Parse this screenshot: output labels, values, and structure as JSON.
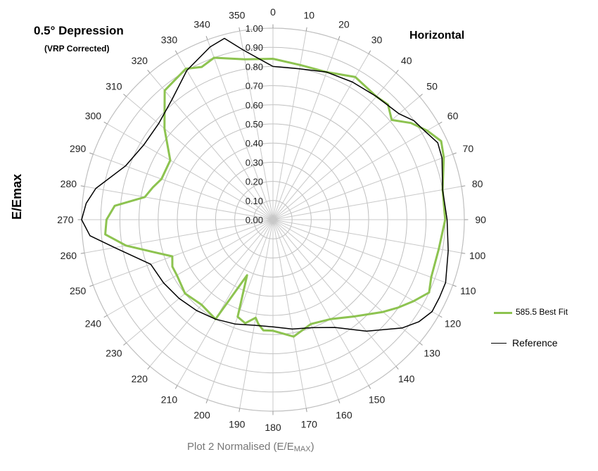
{
  "title": "0.5° Depression",
  "subtitle": "(VRP Corrected)",
  "plane_label": "Horizontal",
  "ylabel": "E/Emax",
  "caption_prefix": "Plot 2 Normalised (E/E",
  "caption_sub": "MAX",
  "caption_suffix": ")",
  "legend": [
    {
      "label": "585.5 Best Fit",
      "color": "#8dc350"
    },
    {
      "label": "Reference",
      "color": "#000000"
    }
  ],
  "chart_data": {
    "type": "polar-line",
    "angle_unit": "degrees",
    "angle_ticks": [
      0,
      10,
      20,
      30,
      40,
      50,
      60,
      70,
      80,
      90,
      100,
      110,
      120,
      130,
      140,
      150,
      160,
      170,
      180,
      190,
      200,
      210,
      220,
      230,
      240,
      250,
      260,
      270,
      280,
      290,
      300,
      310,
      320,
      330,
      340,
      350
    ],
    "radial_ticks": [
      "0.00",
      "0.10",
      "0.20",
      "0.30",
      "0.40",
      "0.50",
      "0.60",
      "0.70",
      "0.80",
      "0.90",
      "1.00"
    ],
    "rlim": [
      0,
      1
    ],
    "grid": true,
    "legend_position": "right",
    "series": [
      {
        "name": "585.5 Best Fit",
        "color": "#8dc350",
        "angles": [
          0,
          10,
          20,
          30,
          40,
          45,
          50,
          55,
          60,
          65,
          70,
          80,
          90,
          100,
          110,
          115,
          120,
          125,
          130,
          140,
          150,
          160,
          170,
          180,
          185,
          188,
          190,
          195,
          200,
          205,
          210,
          220,
          230,
          240,
          245,
          250,
          255,
          260,
          265,
          270,
          275,
          280,
          285,
          290,
          300,
          310,
          320,
          330,
          335,
          340,
          350
        ],
        "values": [
          0.84,
          0.82,
          0.82,
          0.86,
          0.84,
          0.85,
          0.81,
          0.88,
          0.93,
          0.97,
          0.95,
          0.9,
          0.9,
          0.88,
          0.88,
          0.9,
          0.85,
          0.8,
          0.75,
          0.66,
          0.6,
          0.58,
          0.62,
          0.58,
          0.58,
          0.55,
          0.52,
          0.56,
          0.54,
          0.32,
          0.6,
          0.58,
          0.6,
          0.58,
          0.58,
          0.56,
          0.65,
          0.78,
          0.88,
          0.87,
          0.83,
          0.68,
          0.65,
          0.62,
          0.62,
          0.74,
          0.88,
          0.91,
          0.88,
          0.9,
          0.85
        ]
      },
      {
        "name": "Reference",
        "color": "#000000",
        "angles": [
          0,
          10,
          20,
          30,
          40,
          50,
          55,
          60,
          65,
          70,
          80,
          90,
          100,
          110,
          115,
          120,
          125,
          130,
          140,
          150,
          160,
          170,
          180,
          190,
          200,
          210,
          220,
          230,
          240,
          250,
          260,
          265,
          270,
          275,
          280,
          290,
          300,
          310,
          320,
          330,
          340,
          345,
          350
        ],
        "values": [
          0.8,
          0.8,
          0.82,
          0.83,
          0.84,
          0.86,
          0.9,
          0.92,
          0.95,
          0.94,
          0.9,
          0.91,
          0.93,
          0.96,
          0.96,
          0.96,
          0.93,
          0.88,
          0.76,
          0.65,
          0.6,
          0.58,
          0.56,
          0.56,
          0.58,
          0.6,
          0.62,
          0.64,
          0.66,
          0.68,
          0.84,
          0.96,
          1.0,
          0.98,
          0.94,
          0.82,
          0.78,
          0.78,
          0.82,
          0.9,
          0.96,
          0.98,
          0.9
        ]
      }
    ]
  }
}
